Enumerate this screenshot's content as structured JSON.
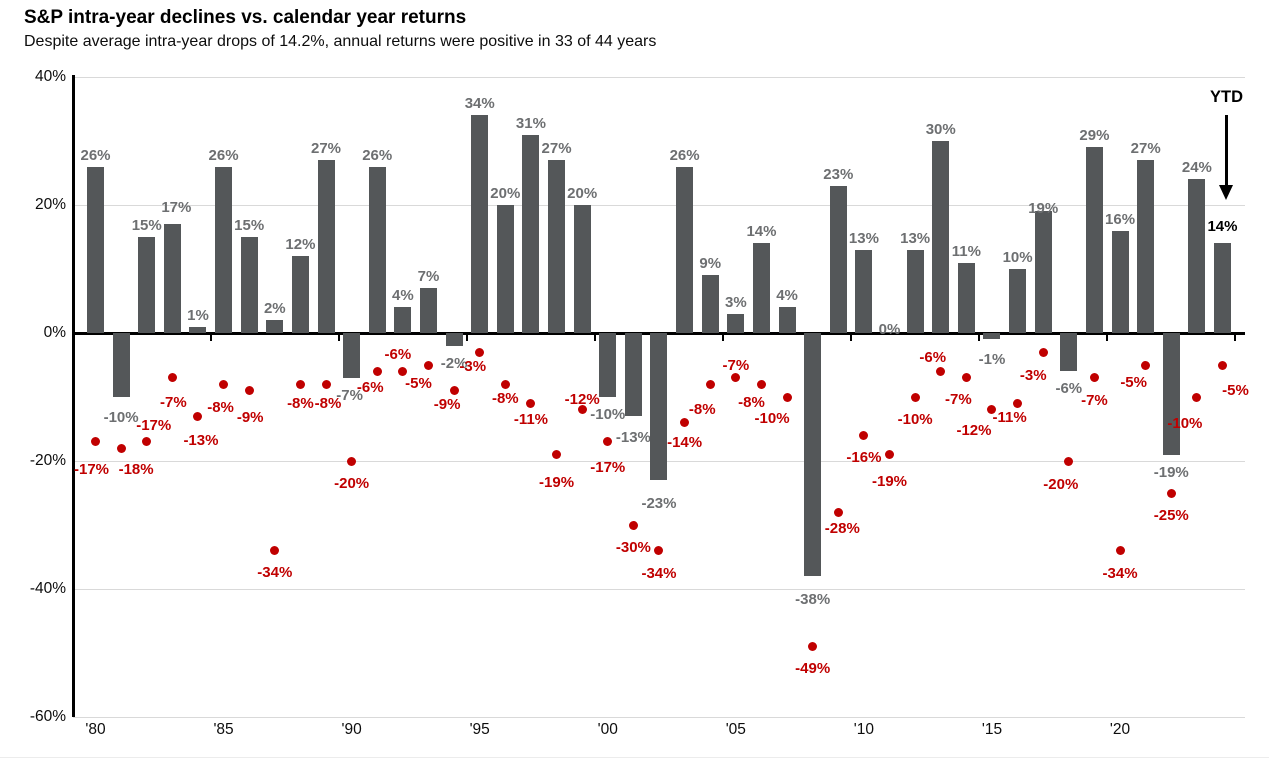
{
  "title": "S&P intra-year declines vs. calendar year returns",
  "subtitle": "Despite average intra-year drops of 14.2%, annual returns were positive in 33 of 44 years",
  "annotations": {
    "ytd": "YTD"
  },
  "colors": {
    "bar": "#545759",
    "bar_label": "#6d6f71",
    "dot": "#c00000",
    "dot_label": "#c00000",
    "ytd_label": "#000000",
    "gridline": "#d9d9d9",
    "axis": "#000000"
  },
  "chart_data": {
    "type": "bar",
    "title": "S&P intra-year declines vs. calendar year returns",
    "subtitle": "Despite average intra-year drops of 14.2%, annual returns were positive in 33 of 44 years",
    "categories": [
      "1980",
      "1981",
      "1982",
      "1983",
      "1984",
      "1985",
      "1986",
      "1987",
      "1988",
      "1989",
      "1990",
      "1991",
      "1992",
      "1993",
      "1994",
      "1995",
      "1996",
      "1997",
      "1998",
      "1999",
      "2000",
      "2001",
      "2002",
      "2003",
      "2004",
      "2005",
      "2006",
      "2007",
      "2008",
      "2009",
      "2010",
      "2011",
      "2012",
      "2013",
      "2014",
      "2015",
      "2016",
      "2017",
      "2018",
      "2019",
      "2020",
      "2021",
      "2022",
      "2023",
      "YTD"
    ],
    "series": [
      {
        "name": "Calendar year returns",
        "type": "bar",
        "values": [
          26,
          -10,
          15,
          17,
          1,
          26,
          15,
          2,
          12,
          27,
          -7,
          26,
          4,
          7,
          -2,
          34,
          20,
          31,
          27,
          20,
          -10,
          -13,
          -23,
          26,
          9,
          3,
          14,
          4,
          -38,
          23,
          13,
          0,
          13,
          30,
          11,
          -1,
          10,
          19,
          -6,
          29,
          16,
          27,
          -19,
          24,
          14
        ],
        "labels": [
          "26%",
          "-10%",
          "15%",
          "17%",
          "1%",
          "26%",
          "15%",
          "2%",
          "12%",
          "27%",
          "-7%",
          "26%",
          "4%",
          "7%",
          "-2%",
          "34%",
          "20%",
          "31%",
          "27%",
          "20%",
          "-10%",
          "-13%",
          "-23%",
          "26%",
          "9%",
          "3%",
          "14%",
          "4%",
          "-38%",
          "23%",
          "13%",
          "0%",
          "13%",
          "30%",
          "11%",
          "-1%",
          "10%",
          "19%",
          "-6%",
          "29%",
          "16%",
          "27%",
          "-19%",
          "24%",
          "14%"
        ]
      },
      {
        "name": "Intra-year declines",
        "type": "scatter",
        "values": [
          -17,
          -18,
          -17,
          -7,
          -13,
          -8,
          -9,
          -34,
          -8,
          -8,
          -20,
          -6,
          -6,
          -5,
          -9,
          -3,
          -8,
          -11,
          -19,
          -12,
          -17,
          -30,
          -34,
          -14,
          -8,
          -7,
          -8,
          -10,
          -49,
          -28,
          -16,
          -19,
          -10,
          -6,
          -7,
          -12,
          -11,
          -3,
          -20,
          -7,
          -34,
          -5,
          -25,
          -10,
          -5
        ],
        "labels": [
          "-17%",
          "-18%",
          "-17%",
          "-7%",
          "-13%",
          "-8%",
          "-9%",
          "-34%",
          "-8%",
          "-8%",
          "-20%",
          "-6%",
          "-6%",
          "-5%",
          "-9%",
          "-3%",
          "-8%",
          "-11%",
          "-19%",
          "-12%",
          "-17%",
          "-30%",
          "-34%",
          "-14%",
          "-8%",
          "-7%",
          "-8%",
          "-10%",
          "-49%",
          "-28%",
          "-16%",
          "-19%",
          "-10%",
          "-6%",
          "-7%",
          "-12%",
          "-11%",
          "-3%",
          "-20%",
          "-7%",
          "-34%",
          "-5%",
          "-25%",
          "-10%",
          "-5%"
        ]
      }
    ],
    "x_tick_labels": [
      "'80",
      "'85",
      "'90",
      "'95",
      "'00",
      "'05",
      "'10",
      "'15",
      "'20"
    ],
    "y_ticks": [
      40,
      20,
      0,
      -20,
      -40,
      -60
    ],
    "y_tick_labels": [
      "40%",
      "20%",
      "0%",
      "-20%",
      "-40%",
      "-60%"
    ],
    "ylim": [
      -60,
      40
    ],
    "grid": true,
    "legend": false
  }
}
